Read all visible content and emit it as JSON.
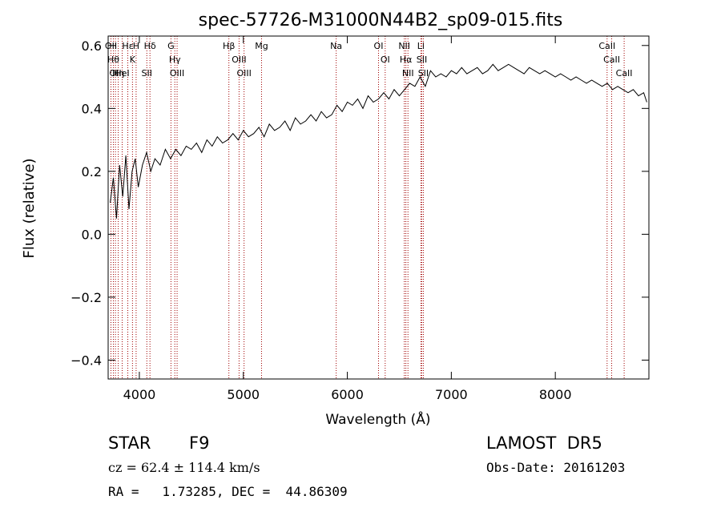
{
  "chart_data": {
    "type": "line",
    "title": "spec-57726-M31000N44B2_sp09-015.fits",
    "xlabel": "Wavelength (Å)",
    "ylabel": "Flux (relative)",
    "xlim": [
      3700,
      8900
    ],
    "ylim": [
      -0.46,
      0.63
    ],
    "x_ticks": [
      {
        "value": 4000,
        "label": "4000"
      },
      {
        "value": 5000,
        "label": "5000"
      },
      {
        "value": 6000,
        "label": "6000"
      },
      {
        "value": 7000,
        "label": "7000"
      },
      {
        "value": 8000,
        "label": "8000"
      }
    ],
    "y_ticks": [
      {
        "value": -0.4,
        "label": "−0.4"
      },
      {
        "value": -0.2,
        "label": "−0.2"
      },
      {
        "value": 0.0,
        "label": "0.0"
      },
      {
        "value": 0.2,
        "label": "0.2"
      },
      {
        "value": 0.4,
        "label": "0.4"
      },
      {
        "value": 0.6,
        "label": "0.6"
      }
    ],
    "grid": false,
    "series": [
      {
        "color": "#000000",
        "x": [
          3720,
          3750,
          3780,
          3810,
          3840,
          3870,
          3900,
          3930,
          3960,
          3990,
          4030,
          4070,
          4110,
          4150,
          4200,
          4250,
          4300,
          4350,
          4400,
          4450,
          4500,
          4550,
          4600,
          4650,
          4700,
          4750,
          4800,
          4850,
          4900,
          4950,
          5000,
          5050,
          5100,
          5150,
          5200,
          5250,
          5300,
          5350,
          5400,
          5450,
          5500,
          5550,
          5600,
          5650,
          5700,
          5750,
          5800,
          5850,
          5900,
          5950,
          6000,
          6050,
          6100,
          6150,
          6200,
          6250,
          6300,
          6350,
          6400,
          6450,
          6500,
          6550,
          6600,
          6650,
          6700,
          6750,
          6800,
          6850,
          6900,
          6950,
          7000,
          7050,
          7100,
          7150,
          7200,
          7250,
          7300,
          7350,
          7400,
          7450,
          7500,
          7550,
          7600,
          7650,
          7700,
          7750,
          7800,
          7850,
          7900,
          7950,
          8000,
          8050,
          8100,
          8150,
          8200,
          8250,
          8300,
          8350,
          8400,
          8450,
          8500,
          8550,
          8600,
          8650,
          8700,
          8750,
          8800,
          8850,
          8880
        ],
        "y": [
          0.1,
          0.18,
          0.05,
          0.22,
          0.12,
          0.25,
          0.08,
          0.2,
          0.24,
          0.15,
          0.22,
          0.26,
          0.2,
          0.24,
          0.22,
          0.27,
          0.24,
          0.27,
          0.25,
          0.28,
          0.27,
          0.29,
          0.26,
          0.3,
          0.28,
          0.31,
          0.29,
          0.3,
          0.32,
          0.3,
          0.33,
          0.31,
          0.32,
          0.34,
          0.31,
          0.35,
          0.33,
          0.34,
          0.36,
          0.33,
          0.37,
          0.35,
          0.36,
          0.38,
          0.36,
          0.39,
          0.37,
          0.38,
          0.41,
          0.39,
          0.42,
          0.41,
          0.43,
          0.4,
          0.44,
          0.42,
          0.43,
          0.45,
          0.43,
          0.46,
          0.44,
          0.46,
          0.48,
          0.47,
          0.5,
          0.47,
          0.52,
          0.5,
          0.51,
          0.5,
          0.52,
          0.51,
          0.53,
          0.51,
          0.52,
          0.53,
          0.51,
          0.52,
          0.54,
          0.52,
          0.53,
          0.54,
          0.53,
          0.52,
          0.51,
          0.53,
          0.52,
          0.51,
          0.52,
          0.51,
          0.5,
          0.51,
          0.5,
          0.49,
          0.5,
          0.49,
          0.48,
          0.49,
          0.48,
          0.47,
          0.48,
          0.46,
          0.47,
          0.46,
          0.45,
          0.46,
          0.44,
          0.45,
          0.42
        ]
      }
    ],
    "spectral_lines": [
      {
        "wavelength": 3727,
        "labels": [
          "OII"
        ]
      },
      {
        "wavelength": 3750,
        "labels": [
          "Hθ"
        ]
      },
      {
        "wavelength": 3770,
        "labels": [
          "OII"
        ]
      },
      {
        "wavelength": 3797,
        "labels": [
          "Hη"
        ]
      },
      {
        "wavelength": 3835,
        "labels": [
          "HeI"
        ]
      },
      {
        "wavelength": 3889,
        "labels": [
          "Hε"
        ]
      },
      {
        "wavelength": 3934,
        "labels": [
          "K"
        ]
      },
      {
        "wavelength": 3969,
        "labels": [
          "H"
        ]
      },
      {
        "wavelength": 4072,
        "labels": [
          "SII"
        ]
      },
      {
        "wavelength": 4102,
        "labels": [
          "Hδ"
        ]
      },
      {
        "wavelength": 4304,
        "labels": [
          "G"
        ]
      },
      {
        "wavelength": 4341,
        "labels": [
          "Hγ"
        ]
      },
      {
        "wavelength": 4363,
        "labels": [
          "OIII"
        ]
      },
      {
        "wavelength": 4861,
        "labels": [
          "Hβ"
        ]
      },
      {
        "wavelength": 4959,
        "labels": [
          "OIII"
        ]
      },
      {
        "wavelength": 5007,
        "labels": [
          "OIII"
        ]
      },
      {
        "wavelength": 5175,
        "labels": [
          "Mg"
        ]
      },
      {
        "wavelength": 5893,
        "labels": [
          "Na"
        ]
      },
      {
        "wavelength": 6300,
        "labels": [
          "OI"
        ]
      },
      {
        "wavelength": 6364,
        "labels": [
          "OI"
        ]
      },
      {
        "wavelength": 6548,
        "labels": [
          "NII"
        ]
      },
      {
        "wavelength": 6563,
        "labels": [
          "Hα"
        ]
      },
      {
        "wavelength": 6583,
        "labels": [
          "NII"
        ]
      },
      {
        "wavelength": 6707,
        "labels": [
          "Li"
        ]
      },
      {
        "wavelength": 6716,
        "labels": [
          "SII"
        ]
      },
      {
        "wavelength": 6731,
        "labels": [
          "SII"
        ]
      },
      {
        "wavelength": 8498,
        "labels": [
          "CaII"
        ]
      },
      {
        "wavelength": 8542,
        "labels": [
          "CaII"
        ]
      },
      {
        "wavelength": 8662,
        "labels": [
          "CaII"
        ]
      }
    ],
    "line_color": "#a00000"
  },
  "info": {
    "object_class": "STAR",
    "subclass": "F9",
    "survey": "LAMOST  DR5",
    "cz": "cz = 62.4 ± 114.4 km/s",
    "obs_date": "Obs-Date: 20161203",
    "coords": "RA =   1.73285, DEC =  44.86309"
  }
}
